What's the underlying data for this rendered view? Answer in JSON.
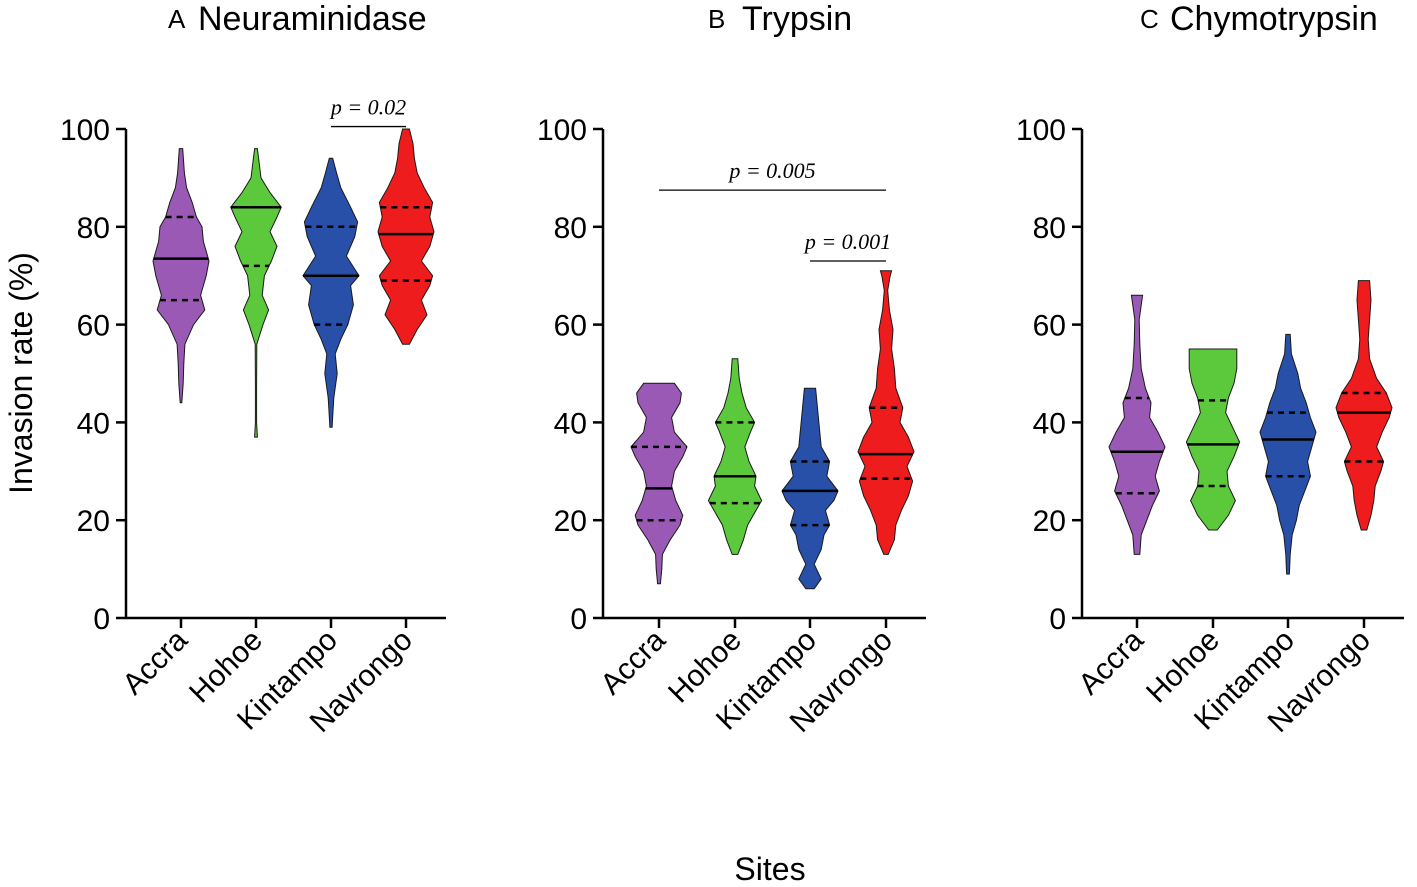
{
  "figure": {
    "ylabel": "Invasion rate (%)",
    "xlabel": "Sites"
  },
  "chart_data": [
    {
      "type": "violin",
      "panel_letter": "A",
      "title": "Neuraminidase",
      "categories": [
        "Accra",
        "Hohoe",
        "Kintampo",
        "Navrongo"
      ],
      "colors": [
        "#9b59b6",
        "#5cc93c",
        "#2850a8",
        "#ee1c1c"
      ],
      "ylim": [
        0,
        100
      ],
      "yticks": [
        0,
        20,
        40,
        60,
        80,
        100
      ],
      "ytick_labels": [
        "0",
        "20",
        "40",
        "60",
        "80",
        "100"
      ],
      "series": [
        {
          "name": "Accra",
          "min": 44,
          "max": 96,
          "q1": 65,
          "median": 73.5,
          "q3": 82,
          "density": [
            [
              44,
              0.03
            ],
            [
              48,
              0.08
            ],
            [
              52,
              0.1
            ],
            [
              56,
              0.14
            ],
            [
              60,
              0.45
            ],
            [
              63,
              0.85
            ],
            [
              66,
              0.7
            ],
            [
              70,
              0.9
            ],
            [
              73,
              1.0
            ],
            [
              77,
              0.8
            ],
            [
              80,
              0.75
            ],
            [
              82,
              0.55
            ],
            [
              85,
              0.4
            ],
            [
              88,
              0.2
            ],
            [
              91,
              0.12
            ],
            [
              96,
              0.06
            ]
          ]
        },
        {
          "name": "Hohoe",
          "min": 37,
          "max": 96,
          "q1": 72,
          "median": 84,
          "q3": 84,
          "density": [
            [
              37,
              0.05
            ],
            [
              40,
              0.02
            ],
            [
              48,
              0.02
            ],
            [
              56,
              0.03
            ],
            [
              60,
              0.25
            ],
            [
              63,
              0.45
            ],
            [
              66,
              0.22
            ],
            [
              70,
              0.3
            ],
            [
              73,
              0.55
            ],
            [
              76,
              0.75
            ],
            [
              79,
              0.5
            ],
            [
              82,
              0.75
            ],
            [
              84,
              0.9
            ],
            [
              87,
              0.5
            ],
            [
              90,
              0.18
            ],
            [
              96,
              0.05
            ]
          ]
        },
        {
          "name": "Kintampo",
          "min": 39,
          "max": 94,
          "q1": 60,
          "median": 70,
          "q3": 80,
          "density": [
            [
              39,
              0.04
            ],
            [
              45,
              0.1
            ],
            [
              50,
              0.22
            ],
            [
              54,
              0.15
            ],
            [
              57,
              0.35
            ],
            [
              60,
              0.6
            ],
            [
              64,
              0.8
            ],
            [
              68,
              0.7
            ],
            [
              70,
              1.0
            ],
            [
              74,
              0.55
            ],
            [
              78,
              0.85
            ],
            [
              81,
              0.95
            ],
            [
              84,
              0.7
            ],
            [
              88,
              0.35
            ],
            [
              91,
              0.2
            ],
            [
              94,
              0.06
            ]
          ]
        },
        {
          "name": "Navrongo",
          "min": 56,
          "max": 100,
          "q1": 69,
          "median": 78.5,
          "q3": 84,
          "density": [
            [
              56,
              0.12
            ],
            [
              59,
              0.4
            ],
            [
              62,
              0.75
            ],
            [
              65,
              0.55
            ],
            [
              68,
              0.85
            ],
            [
              70,
              0.95
            ],
            [
              73,
              0.55
            ],
            [
              76,
              0.85
            ],
            [
              79,
              1.0
            ],
            [
              82,
              0.85
            ],
            [
              85,
              0.95
            ],
            [
              88,
              0.65
            ],
            [
              91,
              0.4
            ],
            [
              94,
              0.3
            ],
            [
              97,
              0.25
            ],
            [
              100,
              0.12
            ]
          ]
        }
      ],
      "annotations": [
        {
          "text": "p = 0.02",
          "from": "Kintampo",
          "to": "Navrongo",
          "y": 100.5
        }
      ]
    },
    {
      "type": "violin",
      "panel_letter": "B",
      "title": "Trypsin",
      "categories": [
        "Accra",
        "Hohoe",
        "Kintampo",
        "Navrongo"
      ],
      "colors": [
        "#9b59b6",
        "#5cc93c",
        "#2850a8",
        "#ee1c1c"
      ],
      "ylim": [
        0,
        100
      ],
      "yticks": [
        0,
        20,
        40,
        60,
        80,
        100
      ],
      "ytick_labels": [
        "0",
        "20",
        "40",
        "60",
        "80",
        "100"
      ],
      "series": [
        {
          "name": "Accra",
          "min": 7,
          "max": 48,
          "q1": 20,
          "median": 26.5,
          "q3": 35,
          "density": [
            [
              7,
              0.05
            ],
            [
              10,
              0.1
            ],
            [
              13,
              0.12
            ],
            [
              16,
              0.4
            ],
            [
              19,
              0.75
            ],
            [
              21,
              0.85
            ],
            [
              24,
              0.6
            ],
            [
              27,
              0.45
            ],
            [
              30,
              0.55
            ],
            [
              33,
              0.85
            ],
            [
              35,
              1.0
            ],
            [
              38,
              0.55
            ],
            [
              41,
              0.45
            ],
            [
              44,
              0.75
            ],
            [
              46,
              0.8
            ],
            [
              48,
              0.55
            ]
          ]
        },
        {
          "name": "Hohoe",
          "min": 13,
          "max": 53,
          "q1": 23.5,
          "median": 29,
          "q3": 40,
          "density": [
            [
              13,
              0.1
            ],
            [
              16,
              0.3
            ],
            [
              19,
              0.45
            ],
            [
              22,
              0.75
            ],
            [
              24,
              0.95
            ],
            [
              27,
              0.7
            ],
            [
              29,
              0.75
            ],
            [
              32,
              0.5
            ],
            [
              35,
              0.35
            ],
            [
              38,
              0.55
            ],
            [
              40,
              0.7
            ],
            [
              43,
              0.4
            ],
            [
              46,
              0.25
            ],
            [
              49,
              0.15
            ],
            [
              53,
              0.1
            ]
          ]
        },
        {
          "name": "Kintampo",
          "min": 6,
          "max": 47,
          "q1": 19,
          "median": 26,
          "q3": 32,
          "density": [
            [
              6,
              0.15
            ],
            [
              8,
              0.4
            ],
            [
              11,
              0.15
            ],
            [
              14,
              0.4
            ],
            [
              17,
              0.5
            ],
            [
              19,
              0.7
            ],
            [
              22,
              0.55
            ],
            [
              24,
              0.85
            ],
            [
              26,
              1.0
            ],
            [
              29,
              0.6
            ],
            [
              32,
              0.7
            ],
            [
              35,
              0.4
            ],
            [
              38,
              0.35
            ],
            [
              41,
              0.3
            ],
            [
              44,
              0.25
            ],
            [
              47,
              0.2
            ]
          ]
        },
        {
          "name": "Navrongo",
          "min": 13,
          "max": 71,
          "q1": 28.5,
          "median": 33.5,
          "q3": 43,
          "density": [
            [
              13,
              0.08
            ],
            [
              16,
              0.3
            ],
            [
              19,
              0.35
            ],
            [
              22,
              0.55
            ],
            [
              25,
              0.8
            ],
            [
              28,
              0.95
            ],
            [
              31,
              0.75
            ],
            [
              34,
              1.0
            ],
            [
              37,
              0.8
            ],
            [
              40,
              0.5
            ],
            [
              43,
              0.6
            ],
            [
              47,
              0.35
            ],
            [
              51,
              0.3
            ],
            [
              55,
              0.2
            ],
            [
              59,
              0.25
            ],
            [
              63,
              0.12
            ],
            [
              67,
              0.06
            ],
            [
              70,
              0.15
            ],
            [
              71,
              0.2
            ]
          ]
        }
      ],
      "annotations": [
        {
          "text": "p = 0.005",
          "from": "Accra",
          "to": "Navrongo",
          "y": 87.5
        },
        {
          "text": "p = 0.001",
          "from": "Kintampo",
          "to": "Navrongo",
          "y": 73
        }
      ]
    },
    {
      "type": "violin",
      "panel_letter": "C",
      "title": "Chymotrypsin",
      "categories": [
        "Accra",
        "Hohoe",
        "Kintampo",
        "Navrongo"
      ],
      "colors": [
        "#9b59b6",
        "#5cc93c",
        "#2850a8",
        "#ee1c1c"
      ],
      "ylim": [
        0,
        100
      ],
      "yticks": [
        0,
        20,
        40,
        60,
        80,
        100
      ],
      "ytick_labels": [
        "0",
        "20",
        "40",
        "60",
        "80",
        "100"
      ],
      "series": [
        {
          "name": "Accra",
          "min": 13,
          "max": 66,
          "q1": 25.5,
          "median": 34,
          "q3": 45,
          "density": [
            [
              13,
              0.1
            ],
            [
              17,
              0.15
            ],
            [
              20,
              0.35
            ],
            [
              23,
              0.55
            ],
            [
              26,
              0.8
            ],
            [
              29,
              0.65
            ],
            [
              32,
              0.8
            ],
            [
              35,
              1.0
            ],
            [
              38,
              0.75
            ],
            [
              41,
              0.45
            ],
            [
              44,
              0.5
            ],
            [
              47,
              0.3
            ],
            [
              51,
              0.15
            ],
            [
              56,
              0.1
            ],
            [
              61,
              0.08
            ],
            [
              66,
              0.2
            ]
          ]
        },
        {
          "name": "Hohoe",
          "min": 18,
          "max": 55,
          "q1": 27,
          "median": 35.5,
          "q3": 44.5,
          "density": [
            [
              18,
              0.15
            ],
            [
              21,
              0.55
            ],
            [
              24,
              0.8
            ],
            [
              27,
              0.55
            ],
            [
              30,
              0.5
            ],
            [
              33,
              0.75
            ],
            [
              36,
              0.95
            ],
            [
              39,
              0.7
            ],
            [
              42,
              0.45
            ],
            [
              45,
              0.55
            ],
            [
              48,
              0.75
            ],
            [
              51,
              0.85
            ],
            [
              55,
              0.85
            ]
          ]
        },
        {
          "name": "Kintampo",
          "min": 9,
          "max": 58,
          "q1": 29,
          "median": 36.5,
          "q3": 42,
          "density": [
            [
              9,
              0.05
            ],
            [
              13,
              0.08
            ],
            [
              17,
              0.15
            ],
            [
              20,
              0.3
            ],
            [
              23,
              0.4
            ],
            [
              26,
              0.6
            ],
            [
              29,
              0.8
            ],
            [
              32,
              0.7
            ],
            [
              35,
              0.85
            ],
            [
              38,
              1.0
            ],
            [
              41,
              0.8
            ],
            [
              44,
              0.65
            ],
            [
              47,
              0.45
            ],
            [
              50,
              0.35
            ],
            [
              54,
              0.12
            ],
            [
              58,
              0.08
            ]
          ]
        },
        {
          "name": "Navrongo",
          "min": 18,
          "max": 69,
          "q1": 32,
          "median": 42,
          "q3": 46,
          "density": [
            [
              18,
              0.1
            ],
            [
              21,
              0.25
            ],
            [
              24,
              0.35
            ],
            [
              27,
              0.4
            ],
            [
              30,
              0.6
            ],
            [
              32,
              0.7
            ],
            [
              35,
              0.45
            ],
            [
              38,
              0.65
            ],
            [
              41,
              0.9
            ],
            [
              43,
              1.0
            ],
            [
              46,
              0.8
            ],
            [
              49,
              0.45
            ],
            [
              53,
              0.2
            ],
            [
              57,
              0.15
            ],
            [
              61,
              0.2
            ],
            [
              65,
              0.25
            ],
            [
              69,
              0.2
            ]
          ]
        }
      ],
      "annotations": []
    }
  ]
}
